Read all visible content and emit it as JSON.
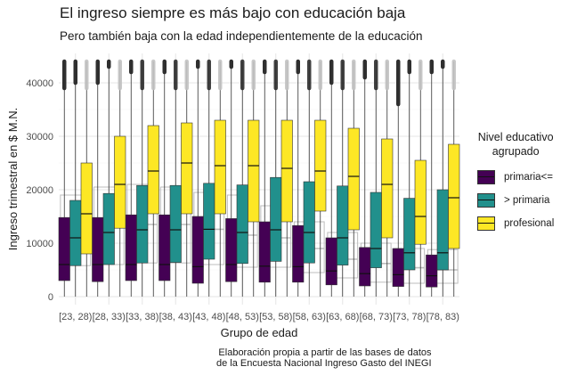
{
  "chart_data": {
    "type": "boxplot",
    "title": "El ingreso siempre es más bajo con educación baja",
    "subtitle": "Pero también baja con la edad independientemente de la educación",
    "xlabel": "Grupo de edad",
    "ylabel": "Ingreso trimestral en $ M.N.",
    "ylim": [
      -1500,
      45500
    ],
    "yticks": [
      0,
      10000,
      20000,
      30000,
      40000
    ],
    "ytick_labels": [
      "0",
      "10000",
      "20000",
      "30000",
      "40000"
    ],
    "categories": [
      "[23, 28)",
      "[28, 33)",
      "[33, 38)",
      "[38, 43)",
      "[43, 48)",
      "[48, 53)",
      "[53, 58)",
      "[58, 63)",
      "[63, 68)",
      "[68, 73)",
      "[73, 78)",
      "[78, 83)"
    ],
    "legend_title": [
      "Nivel educativo",
      "agrupado"
    ],
    "legend_position": "right",
    "grid": true,
    "series": [
      {
        "name": "primaria<=",
        "color": "#440154",
        "q1": [
          3000,
          2800,
          3000,
          3000,
          2500,
          2800,
          2700,
          2700,
          2200,
          2000,
          1900,
          1800
        ],
        "median": [
          6000,
          6000,
          6000,
          6000,
          5600,
          6000,
          5700,
          5600,
          4800,
          4300,
          4100,
          3900
        ],
        "q3": [
          14800,
          14800,
          15300,
          15300,
          15000,
          14600,
          14000,
          13300,
          11000,
          9200,
          9000,
          7800
        ],
        "whisker_high": [
          39000,
          40000,
          42000,
          42000,
          43000,
          43000,
          42000,
          42000,
          40000,
          41000,
          36000,
          42000
        ]
      },
      {
        "name": "> primaria",
        "color": "#21908c",
        "q1": [
          5800,
          6000,
          6300,
          6400,
          7000,
          6200,
          6600,
          6300,
          5900,
          5400,
          5000,
          5000
        ],
        "median": [
          11000,
          12000,
          12500,
          12500,
          12600,
          12000,
          12500,
          12000,
          11000,
          9000,
          8200,
          8200
        ],
        "q3": [
          18000,
          19300,
          20800,
          20800,
          21200,
          20900,
          22300,
          21500,
          20700,
          19500,
          18400,
          20000
        ],
        "whisker_high": [
          40000,
          43000,
          44000,
          44000,
          44000,
          44000,
          44000,
          44000,
          44000,
          44000,
          42000,
          43000
        ]
      },
      {
        "name": "profesional",
        "color": "#fde725",
        "q1": [
          8000,
          12800,
          15500,
          15500,
          15500,
          14000,
          14000,
          16000,
          12500,
          11000,
          9800,
          9000
        ],
        "median": [
          15500,
          21000,
          23500,
          25000,
          24500,
          24500,
          24000,
          23500,
          22500,
          21000,
          15000,
          18500
        ],
        "q3": [
          25000,
          30000,
          32000,
          32500,
          33000,
          33000,
          33000,
          33000,
          31500,
          29500,
          25500,
          28500
        ],
        "whisker_high": [
          44000,
          44000,
          44000,
          44000,
          44000,
          44000,
          44000,
          44000,
          44000,
          44000,
          44000,
          44000
        ]
      }
    ],
    "overall_reference": {
      "color": "#bdbdbd",
      "q1": [
        5800,
        6000,
        6300,
        6300,
        6000,
        5500,
        5500,
        4500,
        3500,
        2700,
        2500,
        2500
      ],
      "median": [
        12000,
        13000,
        13500,
        13500,
        12600,
        11500,
        11000,
        9000,
        7000,
        6200,
        5400,
        5000
      ],
      "q3": [
        19000,
        20500,
        21000,
        20500,
        19500,
        19000,
        17000,
        14000,
        12000,
        10000,
        9000,
        8800
      ]
    }
  },
  "caption": [
    "Elaboración propia a partir de las bases de datos",
    "de la Encuesta Nacional Ingreso Gasto del INEGI"
  ]
}
